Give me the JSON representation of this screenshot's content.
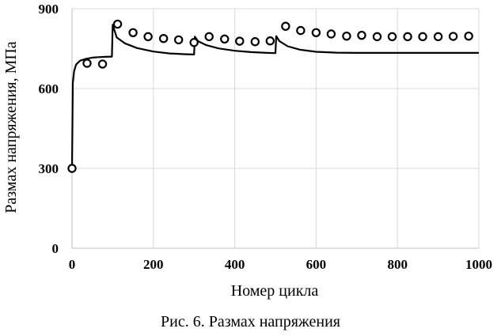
{
  "caption": "Рис. 6. Размах напряжения",
  "chart_data": {
    "type": "scatter",
    "xlabel": "Номер цикла",
    "ylabel": "Размах напряжения, МПа",
    "xlim": [
      0,
      1000
    ],
    "ylim": [
      0,
      900
    ],
    "x_ticks": [
      0,
      200,
      400,
      600,
      800,
      1000
    ],
    "y_ticks": [
      0,
      300,
      600,
      900
    ],
    "grid": true,
    "legend": "none",
    "series": [
      {
        "kind": "line",
        "color": "#000000",
        "x": [
          0,
          2,
          5,
          10,
          20,
          35,
          50,
          65,
          80,
          98,
          100,
          110,
          130,
          160,
          200,
          240,
          280,
          300,
          302,
          310,
          330,
          360,
          400,
          440,
          480,
          500,
          502,
          510,
          530,
          560,
          600,
          650,
          700,
          800,
          900,
          1000
        ],
        "y": [
          300,
          620,
          665,
          690,
          705,
          712,
          716,
          718,
          719,
          720,
          840,
          792,
          770,
          752,
          739,
          732,
          729,
          728,
          795,
          778,
          763,
          751,
          742,
          737,
          734,
          733,
          797,
          778,
          759,
          746,
          738,
          735,
          734,
          734,
          734,
          734
        ]
      },
      {
        "kind": "markers",
        "color": "#000000",
        "x": [
          0,
          37,
          75,
          112,
          150,
          187,
          225,
          262,
          300,
          337,
          375,
          412,
          450,
          487,
          525,
          562,
          600,
          637,
          675,
          712,
          750,
          787,
          825,
          862,
          900,
          937,
          975
        ],
        "y": [
          300,
          695,
          692,
          842,
          810,
          795,
          788,
          783,
          773,
          795,
          786,
          778,
          776,
          779,
          834,
          818,
          810,
          805,
          797,
          800,
          795,
          795,
          795,
          795,
          795,
          796,
          797
        ]
      }
    ]
  }
}
